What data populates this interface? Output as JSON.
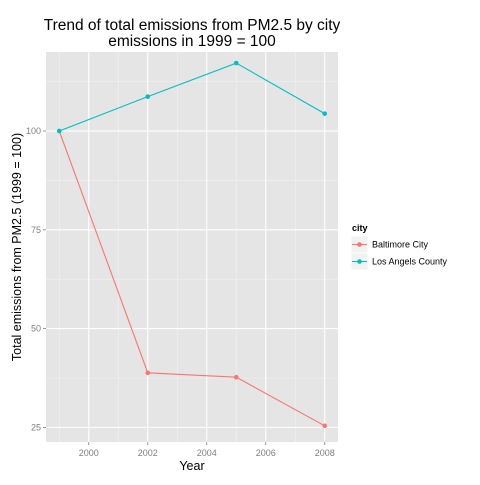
{
  "chart_data": {
    "type": "line",
    "title_lines": [
      "Trend of total emissions from PM2.5 by city",
      "emissions in 1999 = 100"
    ],
    "xlabel": "Year",
    "ylabel": "Total emissions from PM2.5 (1999 = 100)",
    "x": [
      1999,
      2002,
      2005,
      2008
    ],
    "xlim": [
      1998.55,
      2008.45
    ],
    "ylim": [
      21.3,
      120.0
    ],
    "x_ticks": [
      2000,
      2002,
      2004,
      2006,
      2008
    ],
    "x_tick_labels": [
      "2000",
      "2002",
      "2004",
      "2006",
      "2008"
    ],
    "x_minor_ticks": [
      1999,
      2001,
      2003,
      2005,
      2007
    ],
    "y_ticks": [
      25,
      50,
      75,
      100
    ],
    "y_tick_labels": [
      "25",
      "50",
      "75",
      "100"
    ],
    "y_minor_ticks": [
      37.5,
      62.5,
      87.5,
      112.5
    ],
    "grid": true,
    "legend": {
      "title": "city",
      "position": "right"
    },
    "series": [
      {
        "name": "Baltimore City",
        "color": "#F8766D",
        "values": [
          100,
          38.8,
          37.7,
          25.4
        ]
      },
      {
        "name": "Los Angels County",
        "color": "#00BFC4",
        "values": [
          100,
          108.7,
          117.2,
          104.4
        ]
      }
    ],
    "panel_color": "#E5E5E5",
    "grid_color": "#FFFFFF",
    "text_color": "#000000",
    "tick_label_color": "#7F7F7F"
  }
}
